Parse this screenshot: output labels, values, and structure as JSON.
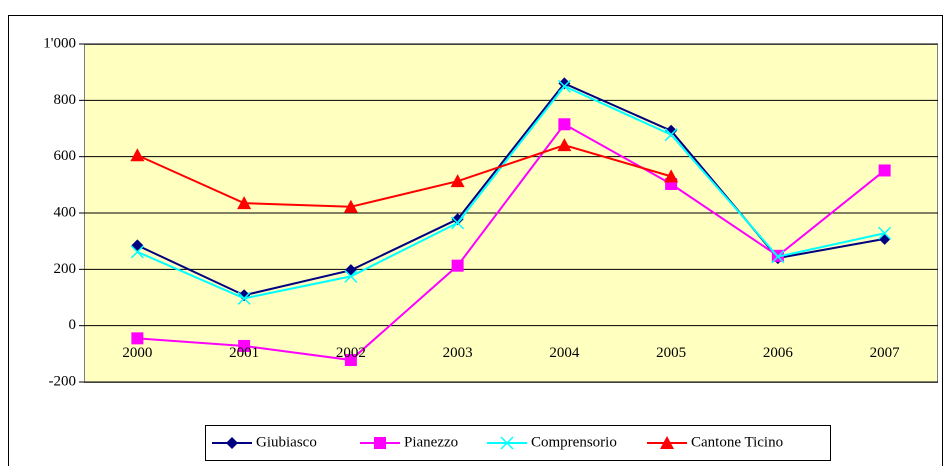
{
  "chart_data": {
    "type": "line",
    "categories": [
      "2000",
      "2001",
      "2002",
      "2003",
      "2004",
      "2005",
      "2006",
      "2007"
    ],
    "series": [
      {
        "name": "Giubiasco",
        "color": "#000080",
        "marker": "diamond",
        "values": [
          285,
          108,
          197,
          378,
          860,
          692,
          240,
          308
        ]
      },
      {
        "name": "Pianezzo",
        "color": "#ff00ff",
        "marker": "square",
        "values": [
          -45,
          -72,
          -122,
          213,
          715,
          503,
          248,
          551
        ]
      },
      {
        "name": "Comprensorio",
        "color": "#00ffff",
        "marker": "x",
        "values": [
          262,
          97,
          175,
          365,
          850,
          678,
          245,
          328
        ]
      },
      {
        "name": "Cantone Ticino",
        "color": "#ff0000",
        "marker": "triangle",
        "values": [
          605,
          435,
          422,
          513,
          641,
          530,
          null,
          null
        ]
      }
    ],
    "ylim": [
      -200,
      1000
    ],
    "yticks": [
      -200,
      0,
      200,
      400,
      600,
      800,
      {
        "value": 1000,
        "label": "1'000"
      }
    ],
    "grid": true,
    "legend": "bottom"
  }
}
